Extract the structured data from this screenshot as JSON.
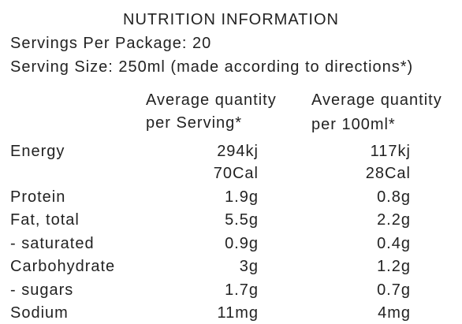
{
  "title": "NUTRITION INFORMATION",
  "servings_per_package": "Servings Per Package: 20",
  "serving_size": "Serving Size: 250ml (made according to directions*)",
  "columns": [
    [
      "Average quantity",
      "per Serving*"
    ],
    [
      "Average quantity",
      "per 100ml*"
    ]
  ],
  "rows": [
    {
      "label": "Energy",
      "per_serving": "294kj",
      "per_100ml": "117kj"
    },
    {
      "per_serving": "70Cal",
      "per_100ml": "28Cal"
    },
    {
      "label": "Protein",
      "per_serving": "1.9g",
      "per_100ml": "0.8g"
    },
    {
      "label": "Fat, total",
      "per_serving": "5.5g",
      "per_100ml": "2.2g"
    },
    {
      "label": "- saturated",
      "per_serving": "0.9g",
      "per_100ml": "0.4g"
    },
    {
      "label": "Carbohydrate",
      "per_serving": "3g",
      "per_100ml": "1.2g"
    },
    {
      "label": "- sugars",
      "per_serving": "1.7g",
      "per_100ml": "0.7g"
    },
    {
      "label": "Sodium",
      "per_serving": "11mg",
      "per_100ml": "4mg"
    }
  ]
}
